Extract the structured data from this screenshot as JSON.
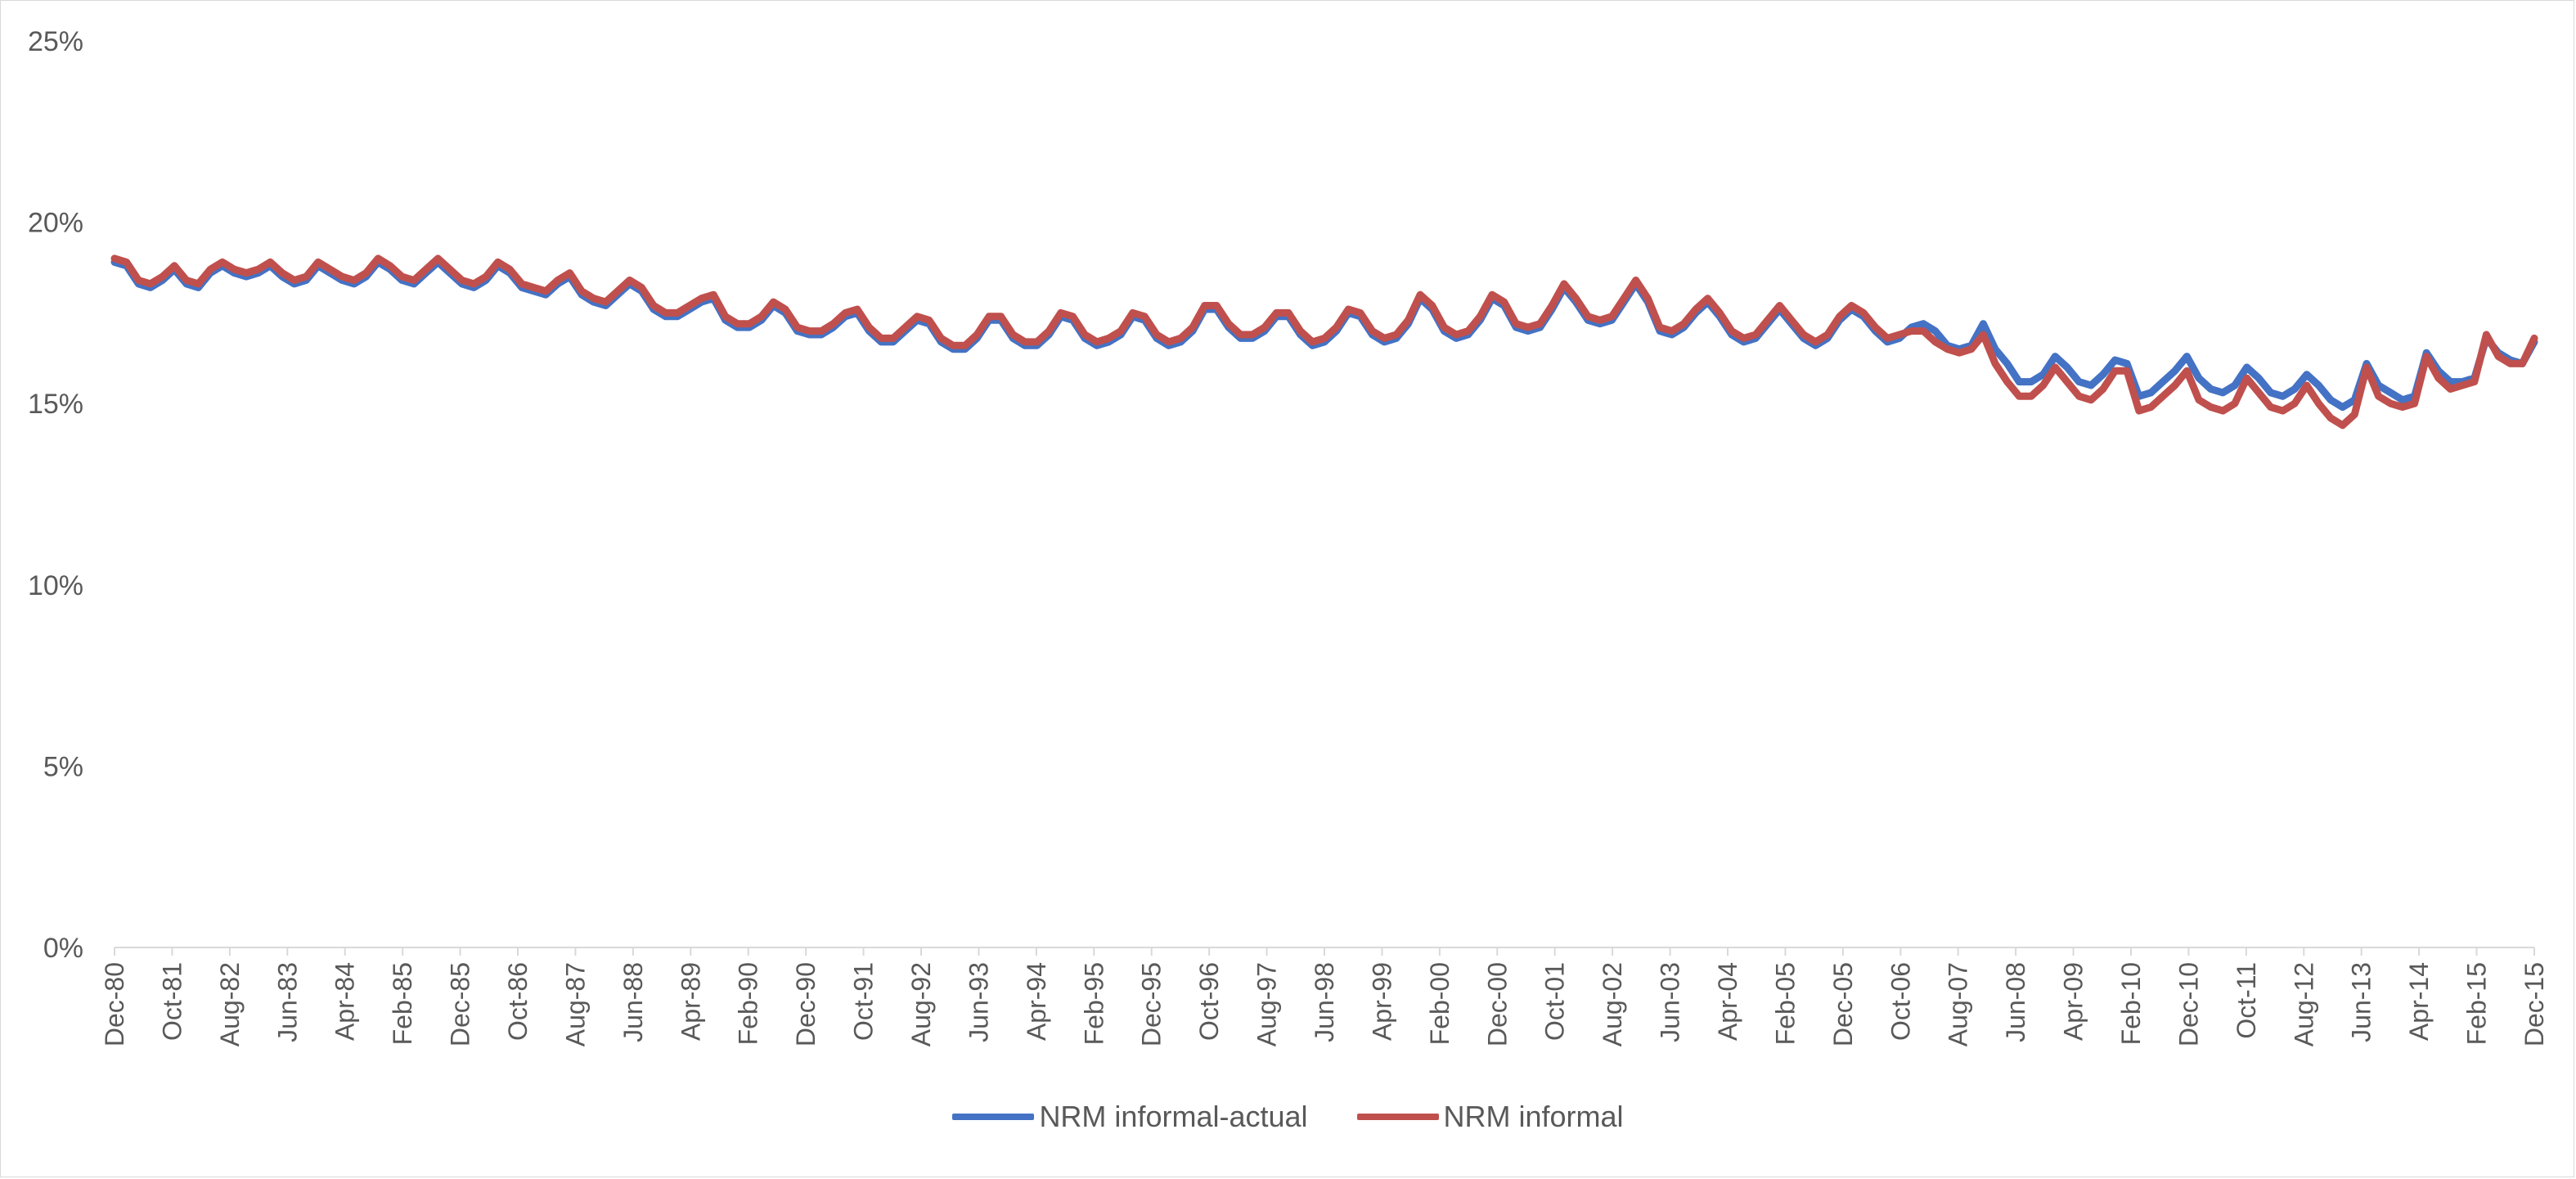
{
  "chart_data": {
    "type": "line",
    "title": "",
    "xlabel": "",
    "ylabel": "",
    "ylim": [
      0,
      25
    ],
    "y_ticks": [
      "0%",
      "5%",
      "10%",
      "15%",
      "20%",
      "25%"
    ],
    "y_tick_values": [
      0,
      5,
      10,
      15,
      20,
      25
    ],
    "x_tick_labels": [
      "Dec-80",
      "Oct-81",
      "Aug-82",
      "Jun-83",
      "Apr-84",
      "Feb-85",
      "Dec-85",
      "Oct-86",
      "Aug-87",
      "Jun-88",
      "Apr-89",
      "Feb-90",
      "Dec-90",
      "Oct-91",
      "Aug-92",
      "Jun-93",
      "Apr-94",
      "Feb-95",
      "Dec-95",
      "Oct-96",
      "Aug-97",
      "Jun-98",
      "Apr-99",
      "Feb-00",
      "Dec-00",
      "Oct-01",
      "Aug-02",
      "Jun-03",
      "Apr-04",
      "Feb-05",
      "Dec-05",
      "Oct-06",
      "Aug-07",
      "Jun-08",
      "Apr-09",
      "Feb-10",
      "Dec-10",
      "Oct-11",
      "Aug-12",
      "Jun-13",
      "Apr-14",
      "Feb-15",
      "Dec-15"
    ],
    "x_start": "Dec-80",
    "x_end": "Dec-15",
    "grid": false,
    "legend_position": "bottom",
    "series": [
      {
        "name": "NRM informal-actual",
        "color": "#4472c4",
        "values": [
          18.9,
          18.8,
          18.3,
          18.2,
          18.4,
          18.7,
          18.3,
          18.2,
          18.6,
          18.8,
          18.6,
          18.5,
          18.6,
          18.8,
          18.5,
          18.3,
          18.4,
          18.8,
          18.6,
          18.4,
          18.3,
          18.5,
          18.9,
          18.7,
          18.4,
          18.3,
          18.6,
          18.9,
          18.6,
          18.3,
          18.2,
          18.4,
          18.8,
          18.6,
          18.2,
          18.1,
          18.0,
          18.3,
          18.5,
          18.0,
          17.8,
          17.7,
          18.0,
          18.3,
          18.1,
          17.6,
          17.4,
          17.4,
          17.6,
          17.8,
          17.9,
          17.3,
          17.1,
          17.1,
          17.3,
          17.7,
          17.5,
          17.0,
          16.9,
          16.9,
          17.1,
          17.4,
          17.5,
          17.0,
          16.7,
          16.7,
          17.0,
          17.3,
          17.2,
          16.7,
          16.5,
          16.5,
          16.8,
          17.3,
          17.3,
          16.8,
          16.6,
          16.6,
          16.9,
          17.4,
          17.3,
          16.8,
          16.6,
          16.7,
          16.9,
          17.4,
          17.3,
          16.8,
          16.6,
          16.7,
          17.0,
          17.6,
          17.6,
          17.1,
          16.8,
          16.8,
          17.0,
          17.4,
          17.4,
          16.9,
          16.6,
          16.7,
          17.0,
          17.5,
          17.4,
          16.9,
          16.7,
          16.8,
          17.2,
          17.9,
          17.6,
          17.0,
          16.8,
          16.9,
          17.3,
          17.9,
          17.7,
          17.1,
          17.0,
          17.1,
          17.6,
          18.2,
          17.8,
          17.3,
          17.2,
          17.3,
          17.8,
          18.3,
          17.8,
          17.0,
          16.9,
          17.1,
          17.5,
          17.8,
          17.4,
          16.9,
          16.7,
          16.8,
          17.2,
          17.6,
          17.2,
          16.8,
          16.6,
          16.8,
          17.3,
          17.6,
          17.4,
          17.0,
          16.7,
          16.8,
          17.1,
          17.2,
          17.0,
          16.6,
          16.5,
          16.6,
          17.2,
          16.5,
          16.1,
          15.6,
          15.6,
          15.8,
          16.3,
          16.0,
          15.6,
          15.5,
          15.8,
          16.2,
          16.1,
          15.2,
          15.3,
          15.6,
          15.9,
          16.3,
          15.7,
          15.4,
          15.3,
          15.5,
          16.0,
          15.7,
          15.3,
          15.2,
          15.4,
          15.8,
          15.5,
          15.1,
          14.9,
          15.1,
          16.1,
          15.5,
          15.3,
          15.1,
          15.2,
          16.4,
          15.9,
          15.6,
          15.6,
          15.7,
          16.8,
          16.4,
          16.2,
          16.1,
          16.7
        ]
      },
      {
        "name": "NRM informal",
        "color": "#c0504d",
        "values": [
          19.0,
          18.9,
          18.4,
          18.3,
          18.5,
          18.8,
          18.4,
          18.3,
          18.7,
          18.9,
          18.7,
          18.6,
          18.7,
          18.9,
          18.6,
          18.4,
          18.5,
          18.9,
          18.7,
          18.5,
          18.4,
          18.6,
          19.0,
          18.8,
          18.5,
          18.4,
          18.7,
          19.0,
          18.7,
          18.4,
          18.3,
          18.5,
          18.9,
          18.7,
          18.3,
          18.2,
          18.1,
          18.4,
          18.6,
          18.1,
          17.9,
          17.8,
          18.1,
          18.4,
          18.2,
          17.7,
          17.5,
          17.5,
          17.7,
          17.9,
          18.0,
          17.4,
          17.2,
          17.2,
          17.4,
          17.8,
          17.6,
          17.1,
          17.0,
          17.0,
          17.2,
          17.5,
          17.6,
          17.1,
          16.8,
          16.8,
          17.1,
          17.4,
          17.3,
          16.8,
          16.6,
          16.6,
          16.9,
          17.4,
          17.4,
          16.9,
          16.7,
          16.7,
          17.0,
          17.5,
          17.4,
          16.9,
          16.7,
          16.8,
          17.0,
          17.5,
          17.4,
          16.9,
          16.7,
          16.8,
          17.1,
          17.7,
          17.7,
          17.2,
          16.9,
          16.9,
          17.1,
          17.5,
          17.5,
          17.0,
          16.7,
          16.8,
          17.1,
          17.6,
          17.5,
          17.0,
          16.8,
          16.9,
          17.3,
          18.0,
          17.7,
          17.1,
          16.9,
          17.0,
          17.4,
          18.0,
          17.8,
          17.2,
          17.1,
          17.2,
          17.7,
          18.3,
          17.9,
          17.4,
          17.3,
          17.4,
          17.9,
          18.4,
          17.9,
          17.1,
          17.0,
          17.2,
          17.6,
          17.9,
          17.5,
          17.0,
          16.8,
          16.9,
          17.3,
          17.7,
          17.3,
          16.9,
          16.7,
          16.9,
          17.4,
          17.7,
          17.5,
          17.1,
          16.8,
          16.9,
          17.0,
          17.0,
          16.7,
          16.5,
          16.4,
          16.5,
          16.9,
          16.1,
          15.6,
          15.2,
          15.2,
          15.5,
          16.0,
          15.6,
          15.2,
          15.1,
          15.4,
          15.9,
          15.9,
          14.8,
          14.9,
          15.2,
          15.5,
          15.9,
          15.1,
          14.9,
          14.8,
          15.0,
          15.7,
          15.3,
          14.9,
          14.8,
          15.0,
          15.5,
          15.0,
          14.6,
          14.4,
          14.7,
          16.0,
          15.2,
          15.0,
          14.9,
          15.0,
          16.3,
          15.7,
          15.4,
          15.5,
          15.6,
          16.9,
          16.3,
          16.1,
          16.1,
          16.8
        ]
      }
    ]
  }
}
